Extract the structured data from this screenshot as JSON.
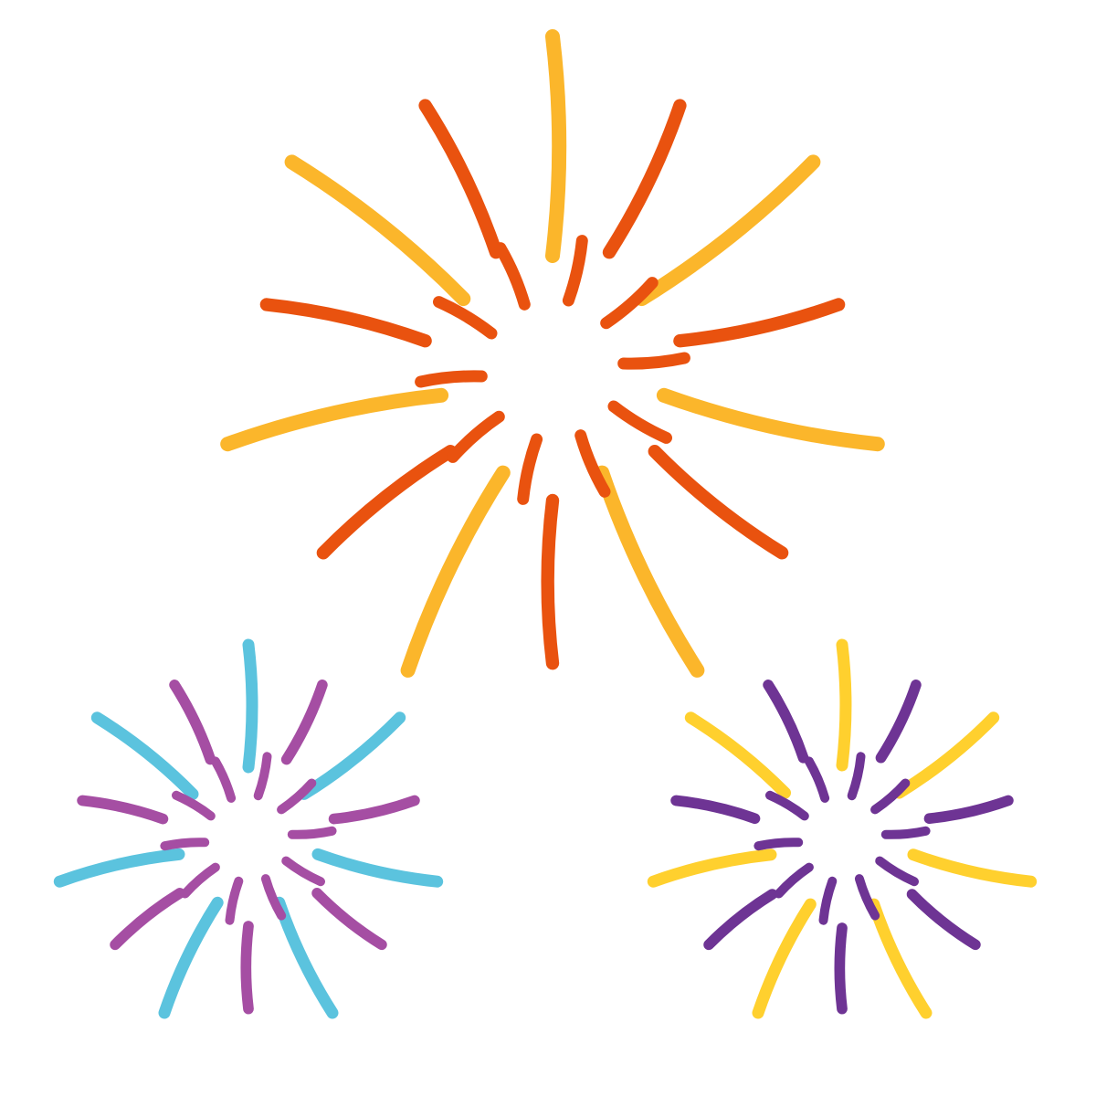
{
  "fireworks": [
    {
      "name": "large-top-burst",
      "primary_color": "#fbb62b",
      "secondary_color": "#e9520f",
      "ray_count": 14,
      "inner_ray_count": 10
    },
    {
      "name": "small-left-burst",
      "primary_color": "#5bc3de",
      "secondary_color": "#a54ea3",
      "ray_count": 14,
      "inner_ray_count": 10
    },
    {
      "name": "small-right-burst",
      "primary_color": "#ffd02e",
      "secondary_color": "#6e3494",
      "ray_count": 14,
      "inner_ray_count": 10
    }
  ]
}
